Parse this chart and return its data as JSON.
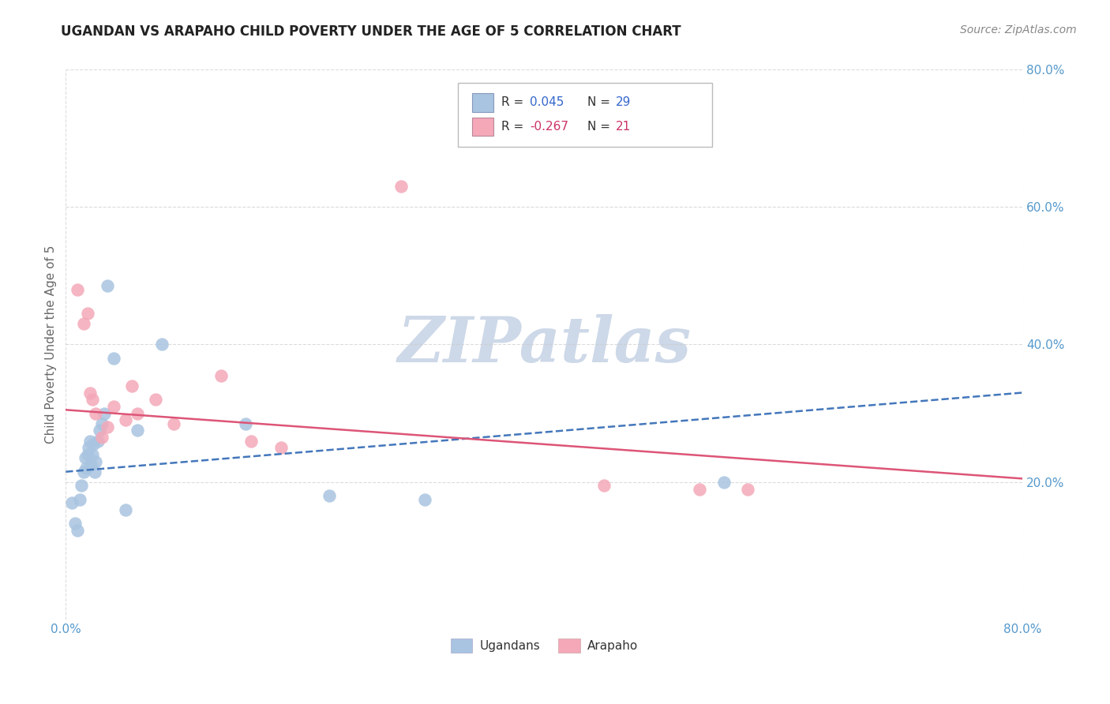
{
  "title": "UGANDAN VS ARAPAHO CHILD POVERTY UNDER THE AGE OF 5 CORRELATION CHART",
  "source": "Source: ZipAtlas.com",
  "ylabel": "Child Poverty Under the Age of 5",
  "legend_blue_r_val": "0.045",
  "legend_blue_n_val": "29",
  "legend_pink_r_val": "-0.267",
  "legend_pink_n_val": "21",
  "watermark_text": "ZIPatlas",
  "xlim": [
    0.0,
    0.8
  ],
  "ylim": [
    0.0,
    0.8
  ],
  "ytick_labels": [
    "20.0%",
    "40.0%",
    "60.0%",
    "80.0%"
  ],
  "ytick_values": [
    0.2,
    0.4,
    0.6,
    0.8
  ],
  "blue_scatter_x": [
    0.005,
    0.008,
    0.01,
    0.012,
    0.013,
    0.015,
    0.016,
    0.017,
    0.018,
    0.019,
    0.02,
    0.021,
    0.022,
    0.023,
    0.024,
    0.025,
    0.027,
    0.028,
    0.03,
    0.032,
    0.035,
    0.04,
    0.05,
    0.06,
    0.08,
    0.15,
    0.22,
    0.3,
    0.55
  ],
  "blue_scatter_y": [
    0.17,
    0.14,
    0.13,
    0.175,
    0.195,
    0.215,
    0.235,
    0.22,
    0.24,
    0.25,
    0.26,
    0.225,
    0.24,
    0.255,
    0.215,
    0.23,
    0.26,
    0.275,
    0.285,
    0.3,
    0.485,
    0.38,
    0.16,
    0.275,
    0.4,
    0.285,
    0.18,
    0.175,
    0.2
  ],
  "pink_scatter_x": [
    0.01,
    0.015,
    0.018,
    0.02,
    0.022,
    0.025,
    0.03,
    0.035,
    0.04,
    0.05,
    0.055,
    0.06,
    0.075,
    0.09,
    0.13,
    0.155,
    0.18,
    0.28,
    0.45,
    0.53,
    0.57
  ],
  "pink_scatter_y": [
    0.48,
    0.43,
    0.445,
    0.33,
    0.32,
    0.3,
    0.265,
    0.28,
    0.31,
    0.29,
    0.34,
    0.3,
    0.32,
    0.285,
    0.355,
    0.26,
    0.25,
    0.63,
    0.195,
    0.19,
    0.19
  ],
  "blue_line_x": [
    0.0,
    0.8
  ],
  "blue_line_y": [
    0.215,
    0.33
  ],
  "pink_line_x": [
    0.0,
    0.8
  ],
  "pink_line_y": [
    0.305,
    0.205
  ],
  "blue_scatter_color": "#a8c4e0",
  "pink_scatter_color": "#f4a8b8",
  "blue_line_color": "#4477bb",
  "pink_line_color": "#dd5577",
  "legend_r_blue_color": "#3366cc",
  "legend_r_pink_color": "#cc3366",
  "tick_color": "#5599cc",
  "ylabel_color": "#666666",
  "watermark_color": "#cdd8e8",
  "title_fontsize": 12,
  "source_fontsize": 10,
  "watermark_fontsize": 58,
  "grid_color": "#cccccc"
}
